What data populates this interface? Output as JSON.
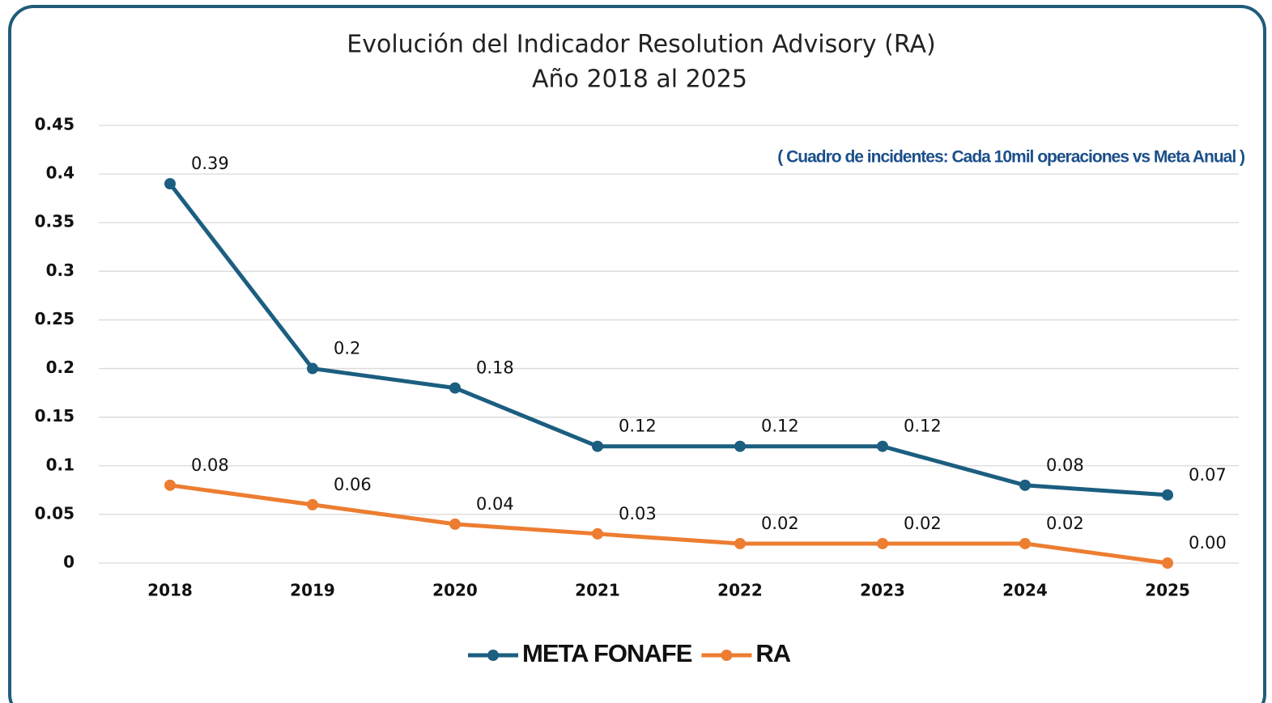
{
  "chart_data": {
    "type": "line",
    "title": "Evolución del Indicador Resolution Advisory (RA)",
    "subtitle": "Año 2018 al 2025",
    "annotation": "( Cuadro de incidentes: Cada 10mil  operaciones vs Meta Anual )",
    "categories": [
      "2018",
      "2019",
      "2020",
      "2021",
      "2022",
      "2023",
      "2024",
      "2025"
    ],
    "series": [
      {
        "name": "META FONAFE",
        "color": "#1b5e80",
        "values": [
          0.39,
          0.2,
          0.18,
          0.12,
          0.12,
          0.12,
          0.08,
          0.07
        ]
      },
      {
        "name": "RA",
        "color": "#ed7d31",
        "values": [
          0.08,
          0.06,
          0.04,
          0.03,
          0.02,
          0.02,
          0.02,
          0
        ],
        "value_labels": [
          "0.08",
          "0.06",
          "0.04",
          "0.03",
          "0.02",
          "0.02",
          "0.02",
          "0.00"
        ]
      }
    ],
    "ylim": [
      0,
      0.45
    ],
    "yticks": [
      0,
      0.05,
      0.1,
      0.15,
      0.2,
      0.25,
      0.3,
      0.35,
      0.4,
      0.45
    ],
    "grid": true,
    "legend": "bottom"
  }
}
